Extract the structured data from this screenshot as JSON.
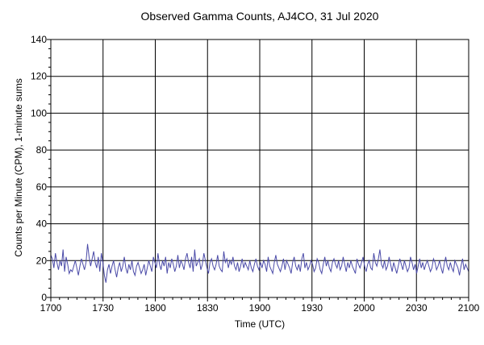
{
  "chart_data": {
    "type": "line",
    "title": "Observed Gamma Counts, AJ4CO, 31 Jul 2020",
    "xlabel": "Time (UTC)",
    "ylabel": "Counts per Minute (CPM), 1-minute sums",
    "x_start": "1700",
    "x_end": "2100",
    "x_ticks": [
      "1700",
      "1730",
      "1800",
      "1830",
      "1900",
      "1930",
      "2000",
      "2030",
      "2100"
    ],
    "ylim": [
      0,
      140
    ],
    "y_ticks": [
      0,
      20,
      40,
      60,
      80,
      100,
      120,
      140
    ],
    "grid": true,
    "series": [
      {
        "name": "",
        "color": "#4b4ba8",
        "values": [
          23,
          21,
          16,
          24,
          19,
          15,
          20,
          17,
          26,
          14,
          22,
          18,
          13,
          15,
          14,
          17,
          20,
          16,
          12,
          17,
          21,
          18,
          15,
          19,
          29,
          22,
          17,
          21,
          25,
          19,
          16,
          22,
          14,
          24,
          19,
          12,
          8,
          15,
          18,
          13,
          17,
          20,
          15,
          11,
          16,
          19,
          14,
          17,
          22,
          16,
          13,
          18,
          15,
          20,
          14,
          12,
          17,
          19,
          16,
          13,
          15,
          18,
          12,
          16,
          20,
          17,
          14,
          22,
          19,
          16,
          24,
          18,
          15,
          20,
          17,
          22,
          13,
          19,
          16,
          21,
          18,
          14,
          17,
          23,
          16,
          20,
          18,
          15,
          21,
          24,
          19,
          16,
          22,
          14,
          26,
          17,
          19,
          21,
          15,
          18,
          24,
          20,
          16,
          13,
          19,
          21,
          17,
          15,
          18,
          23,
          17,
          15,
          14,
          25,
          19,
          21,
          16,
          20,
          18,
          22,
          17,
          15,
          19,
          14,
          17,
          21,
          16,
          19,
          17,
          15,
          20,
          16,
          14,
          18,
          21,
          17,
          15,
          19,
          16,
          20,
          18,
          14,
          22,
          17,
          15,
          13,
          19,
          23,
          18,
          16,
          14,
          17,
          21,
          15,
          20,
          18,
          16,
          13,
          19,
          22,
          17,
          15,
          18,
          14,
          21,
          24,
          16,
          19,
          15,
          17,
          20,
          18,
          14,
          16,
          21,
          19,
          15,
          13,
          18,
          22,
          17,
          20,
          16,
          14,
          19,
          21,
          18,
          16,
          20,
          15,
          17,
          22,
          18,
          14,
          19,
          16,
          20,
          17,
          15,
          13,
          21,
          18,
          16,
          19,
          22,
          17,
          14,
          18,
          20,
          16,
          15,
          24,
          19,
          17,
          21,
          26,
          18,
          16,
          20,
          15,
          17,
          22,
          18,
          14,
          19,
          16,
          13,
          17,
          21,
          18,
          15,
          20,
          17,
          14,
          16,
          22,
          19,
          15,
          18,
          13,
          17,
          21,
          16,
          19,
          15,
          18,
          20,
          17,
          14,
          16,
          21,
          19,
          15,
          17,
          20,
          16,
          13,
          18,
          22,
          17,
          15,
          19,
          16,
          14,
          20,
          18,
          16,
          12,
          17,
          21,
          15,
          18,
          16,
          14
        ]
      }
    ]
  }
}
